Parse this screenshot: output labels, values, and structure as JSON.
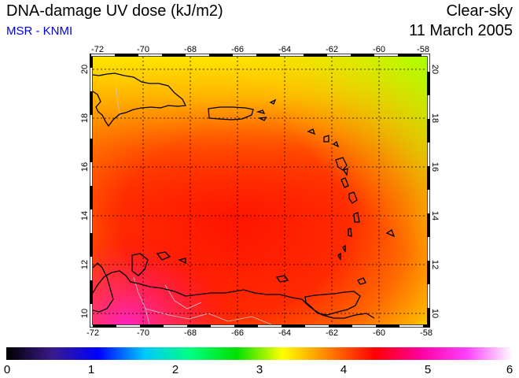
{
  "header": {
    "title": "DNA-damage UV dose (kJ/m2)",
    "source": "MSR - KNMI",
    "sky_condition": "Clear-sky",
    "date": "11 March 2005"
  },
  "colors": {
    "source_text": "#0000dd",
    "coastline": "#000000",
    "borders": "#c8c8c8",
    "grid": "#000000"
  },
  "map": {
    "lon_range": [
      -72,
      -58
    ],
    "lat_range": [
      9.5,
      20.5
    ],
    "lon_ticks": [
      "-72",
      "-70",
      "-68",
      "-66",
      "-64",
      "-62",
      "-60",
      "-58"
    ],
    "lat_ticks": [
      "10",
      "12",
      "14",
      "16",
      "18",
      "20"
    ],
    "field": "UV dose shown by color, roughly 3–5.5 kJ/m2 over the region"
  },
  "colorbar": {
    "min": 0,
    "max": 6,
    "labels": [
      "0",
      "1",
      "2",
      "3",
      "4",
      "5",
      "6"
    ],
    "stops": [
      "#000000",
      "#3a1a8a",
      "#0000ff",
      "#00c8ff",
      "#00ff80",
      "#00e000",
      "#ffff00",
      "#ff8000",
      "#ff0000",
      "#ff00a0",
      "#ff40ff",
      "#ffffff"
    ]
  }
}
